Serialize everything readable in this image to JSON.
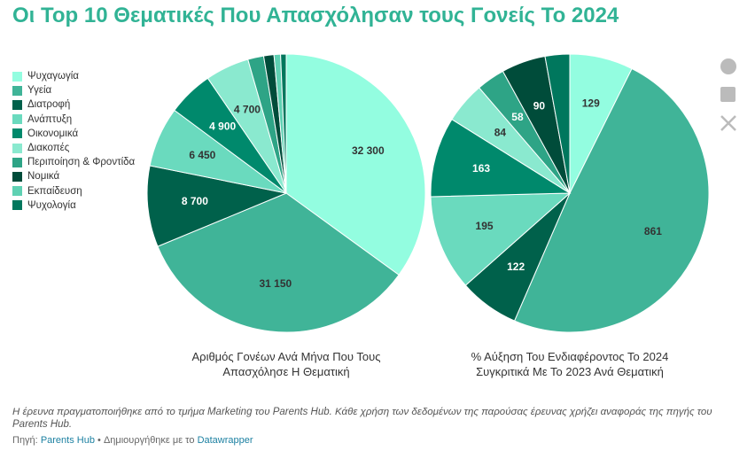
{
  "title": "Οι Top 10 Θεματικές Που Απασχόλησαν τους Γονείς Το 2024",
  "note": "Η έρευνα πραγματοποιήθηκε από το τμήμα Marketing του Parents Hub. Κάθε χρήση των δεδομένων της παρούσας έρευνας χρήζει αναφοράς της πηγής του Parents Hub.",
  "source": {
    "label": "Πηγή:",
    "name": "Parents Hub",
    "made_with": "• Δημιουργήθηκε με το",
    "tool": "Datawrapper"
  },
  "chart_data": {
    "type": "pie",
    "categories": [
      "Ψυχαγωγία",
      "Υγεία",
      "Διατροφή",
      "Ανάπτυξη",
      "Οικονομικά",
      "Διακοπές",
      "Περιποίηση & Φροντίδα",
      "Νομικά",
      "Εκπαίδευση",
      "Ψυχολογία"
    ],
    "colors": [
      "#93fde0",
      "#40b498",
      "#00614b",
      "#6adabe",
      "#00896c",
      "#8ae9cf",
      "#2ea486",
      "#004c3a",
      "#5fd1b3",
      "#00775d"
    ],
    "series": [
      {
        "name": "Αριθμός Γονέων Ανά Μήνα Που Τους Απασχόλησε Η Θεματική",
        "values": [
          32300,
          31150,
          8700,
          6450,
          4900,
          4700,
          1700,
          1100,
          700,
          600
        ],
        "value_labels": [
          "32 300",
          "31 150",
          "8 700",
          "6 450",
          "4 900",
          "4 700",
          null,
          null,
          null,
          null
        ]
      },
      {
        "name": "% Αύξηση Του Ενδιαφέροντος Το 2024 Συγκριτικά Με Το 2023 Ανά Θεματική",
        "values": [
          129,
          861,
          122,
          195,
          163,
          84,
          58,
          90,
          null,
          50
        ],
        "value_labels": [
          "129",
          "861",
          "122",
          "195",
          "163",
          "84",
          "58",
          "90",
          null,
          null
        ]
      }
    ]
  }
}
